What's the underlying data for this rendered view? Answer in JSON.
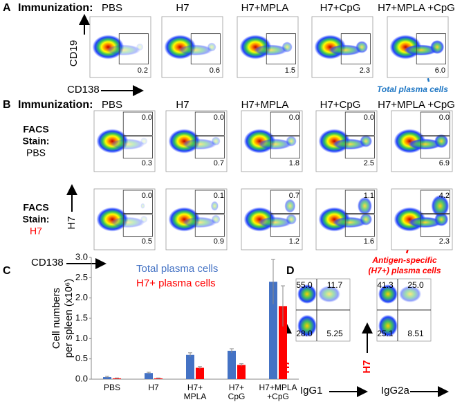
{
  "panels": {
    "a": {
      "label": "A",
      "heading": "Immunization:",
      "columns": [
        "PBS",
        "H7",
        "H7+MPLA",
        "H7+CpG",
        "H7+MPLA +CpG"
      ],
      "gate_values": [
        "0.2",
        "0.6",
        "1.5",
        "2.3",
        "6.0"
      ],
      "y_axis": "CD19",
      "x_axis": "CD138",
      "annotation": "Total plasma cells"
    },
    "b": {
      "label": "B",
      "heading": "Immunization:",
      "columns": [
        "PBS",
        "H7",
        "H7+MPLA",
        "H7+CpG",
        "H7+MPLA +CpG"
      ],
      "rows": [
        {
          "stain_label": [
            "FACS",
            "Stain:"
          ],
          "stain": "PBS",
          "top": [
            "0.0",
            "0.0",
            "0.0",
            "0.0",
            "0.0"
          ],
          "bottom": [
            "0.3",
            "0.7",
            "1.8",
            "2.5",
            "6.9"
          ]
        },
        {
          "stain_label": [
            "FACS",
            "Stain:"
          ],
          "stain": "H7",
          "top": [
            "0.0",
            "0.1",
            "0.7",
            "1.1",
            "4.2"
          ],
          "bottom": [
            "0.5",
            "0.9",
            "1.2",
            "1.6",
            "2.3"
          ]
        }
      ],
      "y_axis": "H7",
      "x_axis": "CD138",
      "annotation": [
        "Antigen-specific",
        "(H7+) plasma cells"
      ]
    },
    "c": {
      "label": "C"
    },
    "d": {
      "label": "D",
      "plots": [
        {
          "quadrants": [
            "55.0",
            "11.7",
            "28.0",
            "5.25"
          ],
          "x_axis": "IgG1",
          "y_axis": "H7"
        },
        {
          "quadrants": [
            "41.3",
            "25.0",
            "25.1",
            "8.51"
          ],
          "x_axis": "IgG2a",
          "y_axis": "H7"
        }
      ]
    }
  },
  "chart_data": {
    "type": "bar",
    "y_label": [
      "Cell numbers",
      "per spleen (x10⁶)"
    ],
    "categories": [
      [
        "PBS"
      ],
      [
        "H7"
      ],
      [
        "H7+",
        "MPLA"
      ],
      [
        "H7+",
        "CpG"
      ],
      [
        "H7+MPLA",
        "+CpG"
      ]
    ],
    "series": [
      {
        "name": "Total plasma cells",
        "color": "#4472c4",
        "values": [
          0.05,
          0.15,
          0.6,
          0.7,
          2.4
        ],
        "errors": [
          0.02,
          0.02,
          0.05,
          0.05,
          0.55
        ]
      },
      {
        "name": "H7+ plasma cells",
        "color": "#ff0000",
        "values": [
          0.02,
          0.02,
          0.28,
          0.35,
          1.8
        ],
        "errors": [
          0.01,
          0.01,
          0.03,
          0.03,
          0.5
        ]
      }
    ],
    "ylim": [
      0,
      3
    ],
    "yticks": [
      {
        "value": 0,
        "label": "0.0"
      },
      {
        "value": 0.5,
        "label": "0.5"
      },
      {
        "value": 1,
        "label": "1.0"
      },
      {
        "value": 1.5,
        "label": "1.5"
      },
      {
        "value": 2,
        "label": "2.0"
      },
      {
        "value": 2.5,
        "label": "2.5"
      },
      {
        "value": 3,
        "label": "3.0"
      }
    ]
  }
}
